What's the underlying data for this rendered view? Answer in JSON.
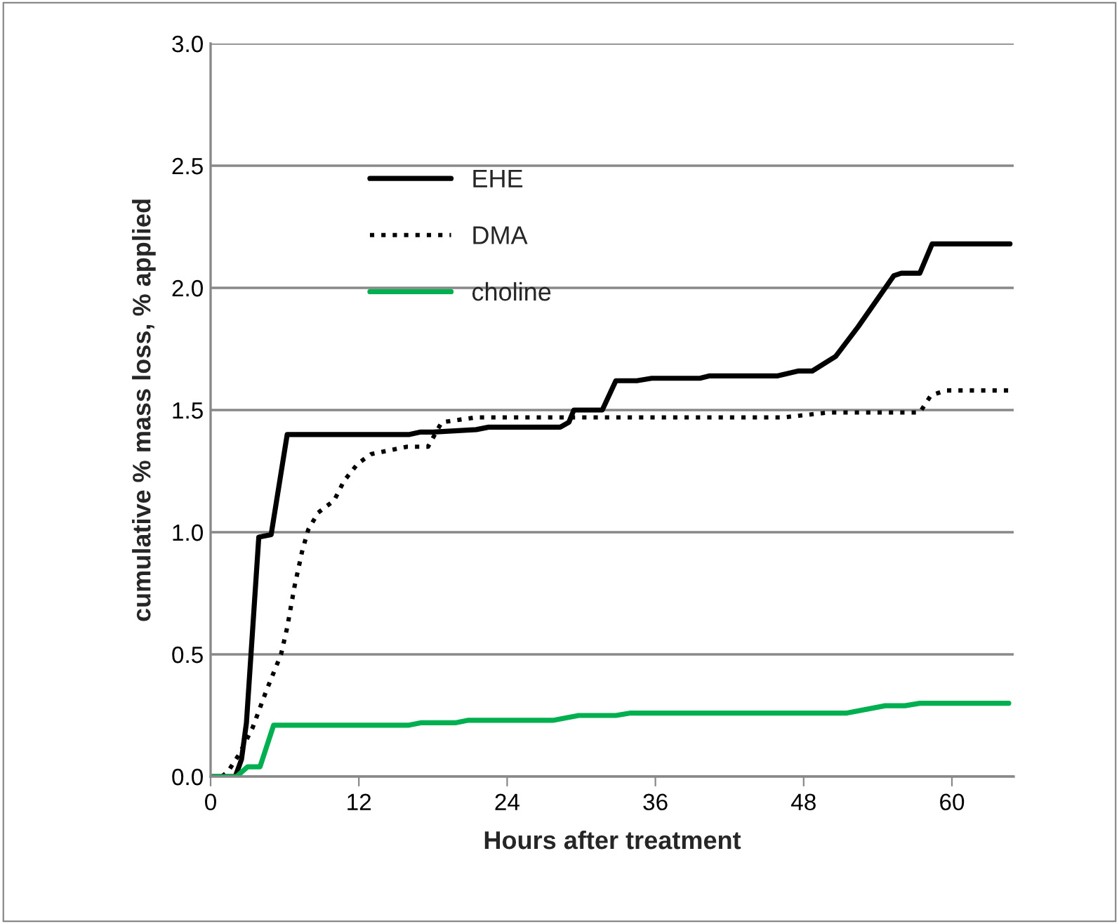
{
  "chart_data": {
    "type": "line",
    "xlabel": "Hours after treatment",
    "ylabel": "cumulative % mass loss, % applied",
    "xlim": [
      0,
      65
    ],
    "xticks": [
      0,
      12,
      24,
      36,
      48,
      60
    ],
    "ylim": [
      0,
      3.0
    ],
    "yticks": [
      {
        "value": 0,
        "label": "0.0"
      },
      {
        "value": 0.5,
        "label": "0.5"
      },
      {
        "value": 1.0,
        "label": "1.0"
      },
      {
        "value": 1.5,
        "label": "1.5"
      },
      {
        "value": 2.0,
        "label": "2.0"
      },
      {
        "value": 2.5,
        "label": "2.5"
      },
      {
        "value": 3.0,
        "label": "3.0"
      }
    ],
    "grid": "y",
    "legend": "top left",
    "marker": "none",
    "series": [
      {
        "name": "EHE",
        "color": "#000000",
        "line_style": "solid",
        "x": [
          0,
          2,
          2.5,
          2.9,
          3.9,
          4.9,
          6.2,
          16.1,
          17,
          18,
          21.5,
          22.5,
          28.3,
          29,
          29.4,
          31.7,
          32.8,
          34.5,
          35.7,
          39.6,
          40.4,
          45.9,
          47.6,
          48.7,
          50.6,
          52.4,
          55.3,
          55.9,
          57.4,
          58.4,
          64.7
        ],
        "values": [
          0,
          0,
          0.07,
          0.22,
          0.98,
          0.99,
          1.4,
          1.4,
          1.41,
          1.41,
          1.42,
          1.43,
          1.43,
          1.45,
          1.5,
          1.5,
          1.62,
          1.62,
          1.63,
          1.63,
          1.64,
          1.64,
          1.66,
          1.66,
          1.72,
          1.84,
          2.05,
          2.06,
          2.06,
          2.18,
          2.18
        ]
      },
      {
        "name": "DMA",
        "color": "#000000",
        "line_style": "dotted",
        "x": [
          0,
          0.9,
          1.4,
          2.3,
          3.4,
          4.5,
          5.7,
          6.2,
          6.8,
          7.4,
          7.9,
          8.7,
          10.0,
          10.8,
          11.9,
          13,
          15.9,
          17.6,
          18.7,
          21.5,
          46.4,
          50,
          57.4,
          58.3,
          59.5,
          64.7
        ],
        "values": [
          0,
          0,
          0.02,
          0.09,
          0.2,
          0.35,
          0.5,
          0.61,
          0.78,
          0.92,
          1.01,
          1.08,
          1.13,
          1.21,
          1.28,
          1.32,
          1.35,
          1.35,
          1.45,
          1.47,
          1.47,
          1.49,
          1.49,
          1.56,
          1.58,
          1.58
        ]
      },
      {
        "name": "choline",
        "color": "#00b050",
        "line_style": "solid",
        "x": [
          0.2,
          2.1,
          3.0,
          4.0,
          5.1,
          16.0,
          17.0,
          19.8,
          20.8,
          27.7,
          29.8,
          32.8,
          34.0,
          51.5,
          54.6,
          56.2,
          57.4,
          64.6
        ],
        "values": [
          0,
          0,
          0.04,
          0.04,
          0.21,
          0.21,
          0.22,
          0.22,
          0.23,
          0.23,
          0.25,
          0.25,
          0.26,
          0.26,
          0.29,
          0.29,
          0.3,
          0.3
        ]
      }
    ]
  }
}
